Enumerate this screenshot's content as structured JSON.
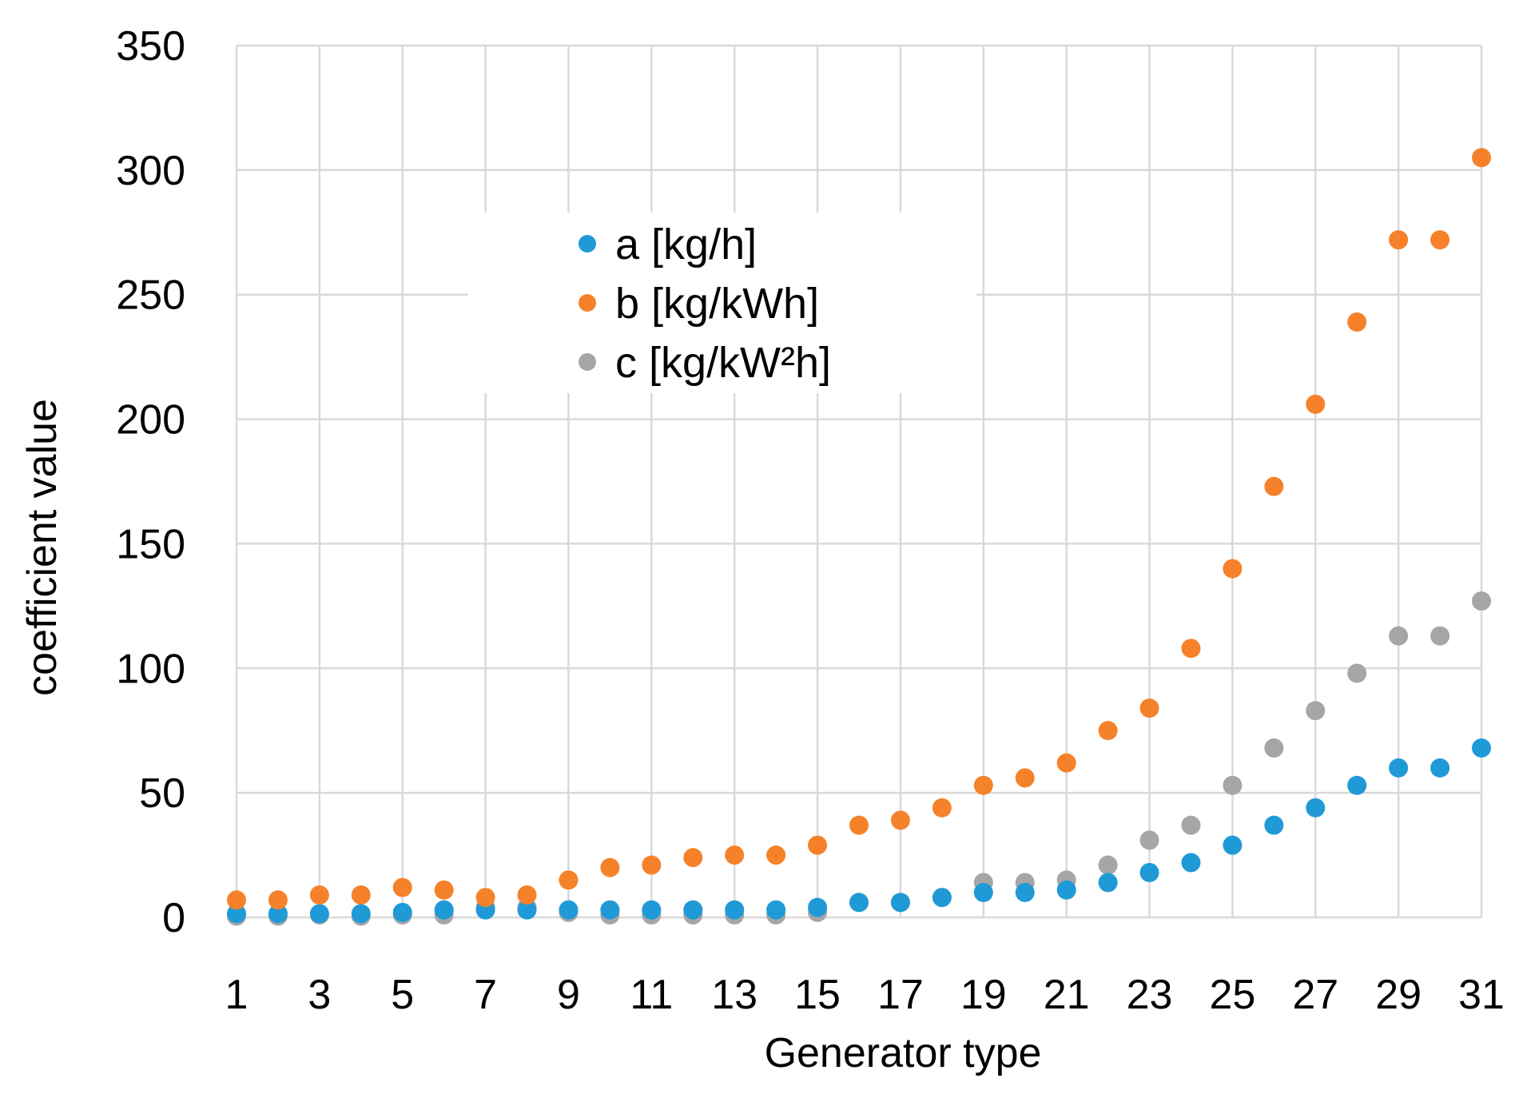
{
  "chart_data": {
    "type": "scatter",
    "title": "",
    "xlabel": "Generator type",
    "ylabel": "coefficient value",
    "xlim": [
      1,
      31
    ],
    "ylim": [
      0,
      350
    ],
    "yticks": [
      0,
      50,
      100,
      150,
      200,
      250,
      300,
      350
    ],
    "xtick_labels": [
      "1",
      "3",
      "5",
      "7",
      "9",
      "11",
      "13",
      "15",
      "17",
      "19",
      "21",
      "23",
      "25",
      "27",
      "29",
      "31"
    ],
    "grid": true,
    "legend_position": "upper-center",
    "x": [
      1,
      2,
      3,
      4,
      5,
      6,
      7,
      8,
      9,
      10,
      11,
      12,
      13,
      14,
      15,
      16,
      17,
      18,
      19,
      20,
      21,
      22,
      23,
      24,
      25,
      26,
      27,
      28,
      29,
      30,
      31
    ],
    "series": [
      {
        "name": "a [kg/h]",
        "color": "#1f9ad6",
        "values": [
          1.5,
          1.5,
          1.5,
          1.5,
          2,
          3,
          3,
          3,
          3,
          3,
          3,
          3,
          3,
          3,
          4,
          6,
          6,
          8,
          10,
          10,
          11,
          14,
          18,
          22,
          29,
          37,
          44,
          53,
          60,
          60,
          68
        ]
      },
      {
        "name": "b [kg/kWh]",
        "color": "#f5822a",
        "values": [
          7,
          7,
          9,
          9,
          12,
          11,
          8,
          9,
          15,
          20,
          21,
          24,
          25,
          25,
          29,
          37,
          39,
          44,
          53,
          56,
          62,
          75,
          84,
          108,
          140,
          173,
          206,
          239,
          272,
          272,
          305
        ]
      },
      {
        "name": "c [kg/kW²h]",
        "color": "#a6a6a6",
        "values": [
          0.5,
          0.5,
          1,
          0.5,
          1,
          1,
          4,
          4,
          2,
          1,
          1,
          1,
          1,
          1,
          2,
          6,
          6,
          8,
          14,
          14,
          15,
          21,
          31,
          37,
          53,
          68,
          83,
          98,
          113,
          113,
          127
        ]
      }
    ]
  }
}
